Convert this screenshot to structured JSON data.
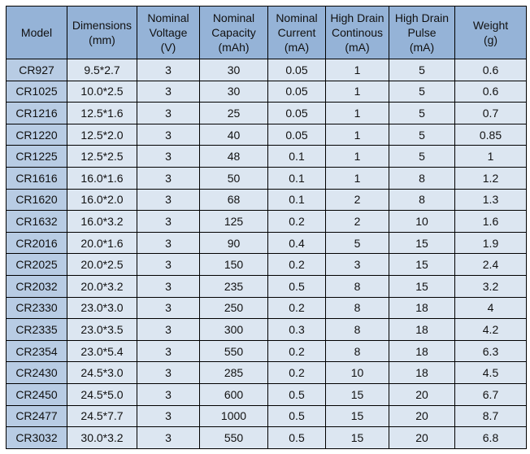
{
  "headers": [
    "Model",
    "Dimensions\n(mm)",
    "Nominal\nVoltage\n(V)",
    "Nominal\nCapacity\n(mAh)",
    "Nominal\nCurrent\n(mA)",
    "High Drain\nContinous\n(mA)",
    "High Drain\nPulse\n(mA)",
    "Weight\n(g)"
  ],
  "rows": [
    [
      "CR927",
      "9.5*2.7",
      "3",
      "30",
      "0.05",
      "1",
      "5",
      "0.6"
    ],
    [
      "CR1025",
      "10.0*2.5",
      "3",
      "30",
      "0.05",
      "1",
      "5",
      "0.6"
    ],
    [
      "CR1216",
      "12.5*1.6",
      "3",
      "25",
      "0.05",
      "1",
      "5",
      "0.7"
    ],
    [
      "CR1220",
      "12.5*2.0",
      "3",
      "40",
      "0.05",
      "1",
      "5",
      "0.85"
    ],
    [
      "CR1225",
      "12.5*2.5",
      "3",
      "48",
      "0.1",
      "1",
      "5",
      "1"
    ],
    [
      "CR1616",
      "16.0*1.6",
      "3",
      "50",
      "0.1",
      "1",
      "8",
      "1.2"
    ],
    [
      "CR1620",
      "16.0*2.0",
      "3",
      "68",
      "0.1",
      "2",
      "8",
      "1.3"
    ],
    [
      "CR1632",
      "16.0*3.2",
      "3",
      "125",
      "0.2",
      "2",
      "10",
      "1.6"
    ],
    [
      "CR2016",
      "20.0*1.6",
      "3",
      "90",
      "0.4",
      "5",
      "15",
      "1.9"
    ],
    [
      "CR2025",
      "20.0*2.5",
      "3",
      "150",
      "0.2",
      "3",
      "15",
      "2.4"
    ],
    [
      "CR2032",
      "20.0*3.2",
      "3",
      "235",
      "0.5",
      "8",
      "15",
      "3.2"
    ],
    [
      "CR2330",
      "23.0*3.0",
      "3",
      "250",
      "0.2",
      "8",
      "18",
      "4"
    ],
    [
      "CR2335",
      "23.0*3.5",
      "3",
      "300",
      "0.3",
      "8",
      "18",
      "4.2"
    ],
    [
      "CR2354",
      "23.0*5.4",
      "3",
      "550",
      "0.2",
      "8",
      "18",
      "6.3"
    ],
    [
      "CR2430",
      "24.5*3.0",
      "3",
      "285",
      "0.2",
      "10",
      "18",
      "4.5"
    ],
    [
      "CR2450",
      "24.5*5.0",
      "3",
      "600",
      "0.5",
      "15",
      "20",
      "6.7"
    ],
    [
      "CR2477",
      "24.5*7.7",
      "3",
      "1000",
      "0.5",
      "15",
      "20",
      "8.7"
    ],
    [
      "CR3032",
      "30.0*3.2",
      "3",
      "550",
      "0.5",
      "15",
      "20",
      "6.8"
    ]
  ]
}
